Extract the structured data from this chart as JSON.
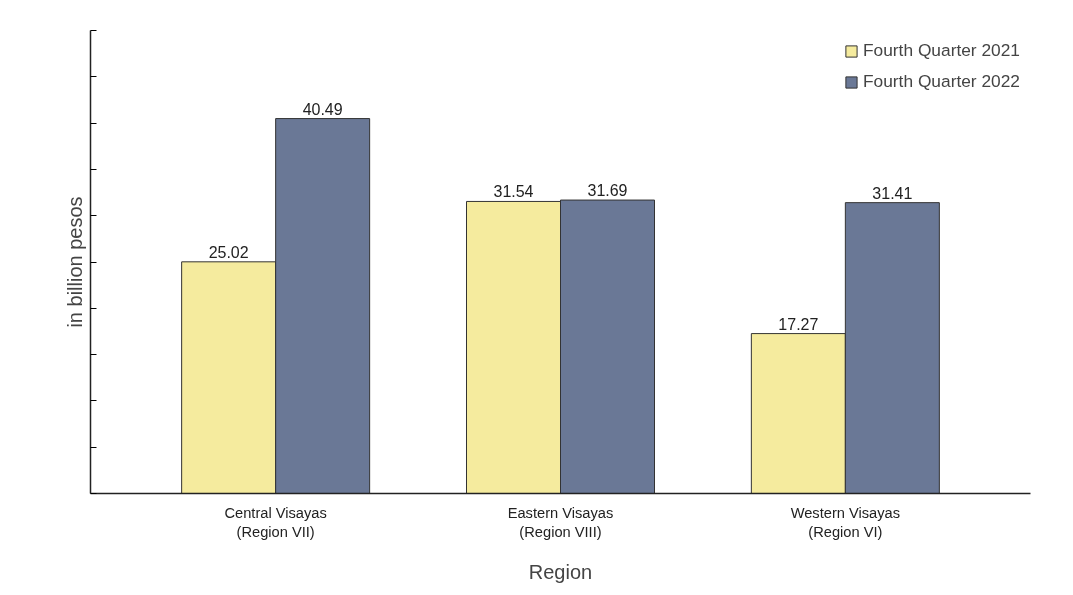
{
  "chart_data": {
    "type": "bar",
    "xlabel": "Region",
    "ylabel": "in billion pesos",
    "categories": [
      "Central Visayas\n(Region VII)",
      "Eastern Visayas\n(Region VIII)",
      "Western Visayas\n(Region VI)"
    ],
    "series": [
      {
        "name": "Fourth Quarter 2021",
        "color": "#f5eb9e",
        "values": [
          25.02,
          31.54,
          17.27
        ]
      },
      {
        "name": "Fourth Quarter 2022",
        "color": "#6a7896",
        "values": [
          40.49,
          31.69,
          31.41
        ]
      }
    ],
    "ylim": [
      0,
      50
    ],
    "yticks": [
      {
        "value": 0,
        "label": null
      },
      {
        "value": 5,
        "label": null
      },
      {
        "value": 10,
        "label": null
      },
      {
        "value": 15,
        "label": null
      },
      {
        "value": 20,
        "label": null
      },
      {
        "value": 25,
        "label": null
      },
      {
        "value": 30,
        "label": null
      },
      {
        "value": 35,
        "label": null
      },
      {
        "value": 40,
        "label": null
      },
      {
        "value": 45,
        "label": null
      },
      {
        "value": 50,
        "label": null
      }
    ],
    "tick_labels": "x",
    "data_labels": true,
    "grid": false,
    "legend": "top right"
  }
}
